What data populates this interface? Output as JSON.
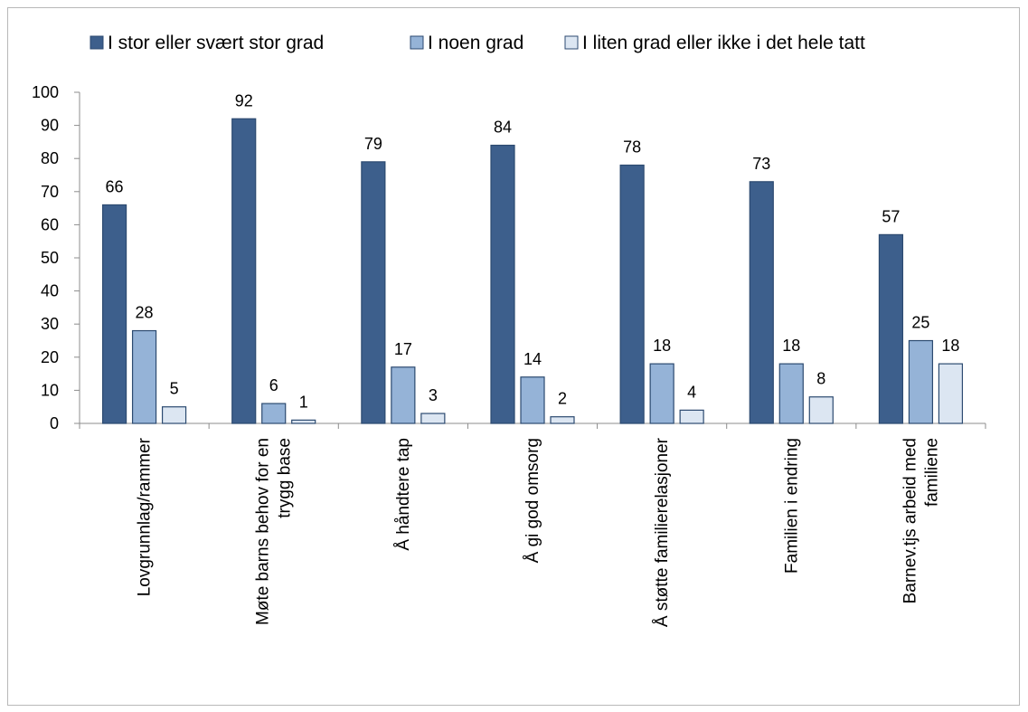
{
  "chart_data": {
    "type": "bar",
    "categories": [
      [
        "Lovgrunnlag/rammer"
      ],
      [
        "Møte barns behov for en",
        "trygg base"
      ],
      [
        "Å håndtere tap"
      ],
      [
        "Å gi god omsorg"
      ],
      [
        "Å støtte familierelasjoner"
      ],
      [
        "Familien i endring"
      ],
      [
        "Barnev.tjs arbeid med",
        "familiene"
      ]
    ],
    "series": [
      {
        "name": "I stor eller svært stor grad",
        "values": [
          66,
          92,
          79,
          84,
          78,
          73,
          57
        ]
      },
      {
        "name": "I noen grad",
        "values": [
          28,
          6,
          17,
          14,
          18,
          18,
          25
        ]
      },
      {
        "name": "I liten grad eller ikke i det hele tatt",
        "values": [
          5,
          1,
          3,
          2,
          4,
          8,
          18
        ]
      }
    ],
    "ylim": [
      0,
      100
    ],
    "yticks": [
      0,
      10,
      20,
      30,
      40,
      50,
      60,
      70,
      80,
      90,
      100
    ],
    "legend_position": "top",
    "grid": false,
    "colors": [
      "#3d5f8c",
      "#95b3d7",
      "#dce6f2"
    ],
    "stroke_colors": [
      "#2c4a70",
      "#2c4a70",
      "#2c4a70"
    ]
  }
}
